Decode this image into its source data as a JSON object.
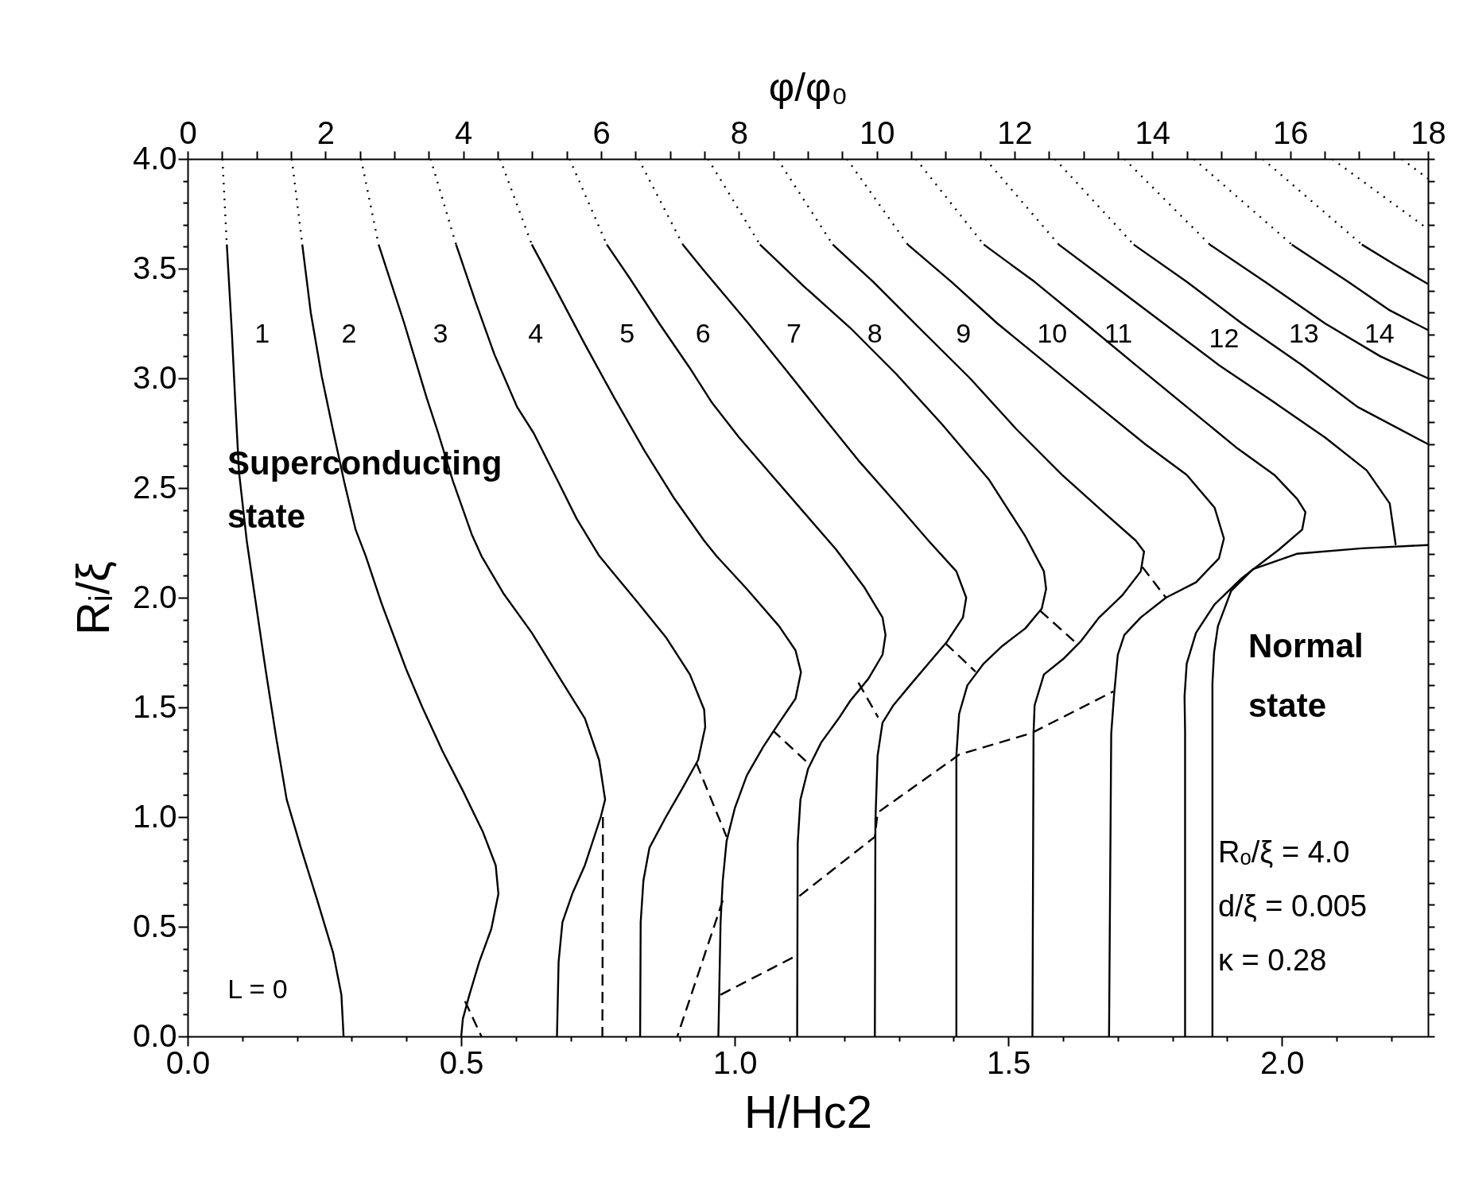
{
  "chart_data": {
    "type": "line",
    "xlabel": "H/Hc2",
    "ylabel": "Rᵢ/ξ",
    "x2label": "φ/φ₀",
    "xlim": [
      0,
      2.267
    ],
    "ylim": [
      0,
      4.0
    ],
    "x2lim": [
      0,
      18
    ],
    "xticks": [
      {
        "value": 0,
        "label": "0.0"
      },
      {
        "value": 0.1,
        "label": null
      },
      {
        "value": 0.2,
        "label": null
      },
      {
        "value": 0.3,
        "label": null
      },
      {
        "value": 0.4,
        "label": null
      },
      0.5,
      {
        "value": 0.6,
        "label": null
      },
      {
        "value": 0.7,
        "label": null
      },
      {
        "value": 0.8,
        "label": null
      },
      {
        "value": 0.9,
        "label": null
      },
      {
        "value": 1.0,
        "label": "1.0"
      },
      {
        "value": 1.1,
        "label": null
      },
      {
        "value": 1.2,
        "label": null
      },
      {
        "value": 1.3,
        "label": null
      },
      {
        "value": 1.4,
        "label": null
      },
      1.5,
      {
        "value": 1.6,
        "label": null
      },
      {
        "value": 1.7,
        "label": null
      },
      {
        "value": 1.8,
        "label": null
      },
      {
        "value": 1.9,
        "label": null
      },
      {
        "value": 2.0,
        "label": "2.0"
      },
      {
        "value": 2.1,
        "label": null
      },
      {
        "value": 2.2,
        "label": null
      }
    ],
    "yticks": [
      {
        "value": 0,
        "label": "0.0"
      },
      {
        "value": 0.1,
        "label": null
      },
      {
        "value": 0.2,
        "label": null
      },
      {
        "value": 0.3,
        "label": null
      },
      {
        "value": 0.4,
        "label": null
      },
      0.5,
      {
        "value": 0.6,
        "label": null
      },
      {
        "value": 0.7,
        "label": null
      },
      {
        "value": 0.8,
        "label": null
      },
      {
        "value": 0.9,
        "label": null
      },
      {
        "value": 1.0,
        "label": "1.0"
      },
      {
        "value": 1.1,
        "label": null
      },
      {
        "value": 1.2,
        "label": null
      },
      {
        "value": 1.3,
        "label": null
      },
      {
        "value": 1.4,
        "label": null
      },
      1.5,
      {
        "value": 1.6,
        "label": null
      },
      {
        "value": 1.7,
        "label": null
      },
      {
        "value": 1.8,
        "label": null
      },
      {
        "value": 1.9,
        "label": null
      },
      {
        "value": 2.0,
        "label": "2.0"
      },
      {
        "value": 2.1,
        "label": null
      },
      {
        "value": 2.2,
        "label": null
      },
      {
        "value": 2.3,
        "label": null
      },
      {
        "value": 2.4,
        "label": null
      },
      2.5,
      {
        "value": 2.6,
        "label": null
      },
      {
        "value": 2.7,
        "label": null
      },
      {
        "value": 2.8,
        "label": null
      },
      {
        "value": 2.9,
        "label": null
      },
      {
        "value": 3.0,
        "label": "3.0"
      },
      {
        "value": 3.1,
        "label": null
      },
      {
        "value": 3.2,
        "label": null
      },
      {
        "value": 3.3,
        "label": null
      },
      {
        "value": 3.4,
        "label": null
      },
      3.5,
      {
        "value": 3.6,
        "label": null
      },
      {
        "value": 3.7,
        "label": null
      },
      {
        "value": 3.8,
        "label": null
      },
      {
        "value": 3.9,
        "label": null
      },
      {
        "value": 4.0,
        "label": "4.0"
      }
    ],
    "x2ticks": [
      0,
      {
        "value": 0.5,
        "label": null
      },
      {
        "value": 1,
        "label": null
      },
      {
        "value": 1.5,
        "label": null
      },
      2,
      {
        "value": 2.5,
        "label": null
      },
      {
        "value": 3,
        "label": null
      },
      {
        "value": 3.5,
        "label": null
      },
      4,
      {
        "value": 4.5,
        "label": null
      },
      {
        "value": 5,
        "label": null
      },
      {
        "value": 5.5,
        "label": null
      },
      6,
      {
        "value": 6.5,
        "label": null
      },
      {
        "value": 7,
        "label": null
      },
      {
        "value": 7.5,
        "label": null
      },
      8,
      {
        "value": 8.5,
        "label": null
      },
      {
        "value": 9,
        "label": null
      },
      {
        "value": 9.5,
        "label": null
      },
      10,
      {
        "value": 10.5,
        "label": null
      },
      {
        "value": 11,
        "label": null
      },
      {
        "value": 11.5,
        "label": null
      },
      12,
      {
        "value": 12.5,
        "label": null
      },
      {
        "value": 13,
        "label": null
      },
      {
        "value": 13.5,
        "label": null
      },
      14,
      {
        "value": 14.5,
        "label": null
      },
      {
        "value": 15,
        "label": null
      },
      {
        "value": 15.5,
        "label": null
      },
      16,
      {
        "value": 16.5,
        "label": null
      },
      {
        "value": 17,
        "label": null
      },
      {
        "value": 17.5,
        "label": null
      },
      18
    ],
    "grid": false,
    "line_style": "solid",
    "series": [
      {
        "color": "#000000",
        "x": [
          0.0716,
          0.0806,
          0.0875,
          0.094,
          0.108,
          0.122,
          0.142,
          0.162,
          0.181,
          0.207,
          0.237,
          0.266,
          0.281,
          0.285
        ],
        "values": [
          3.61,
          3.22,
          2.87,
          2.57,
          2.26,
          2.02,
          1.68,
          1.36,
          1.08,
          0.86,
          0.62,
          0.38,
          0.19,
          0.0
        ]
      },
      {
        "color": "#000000",
        "x": [
          0.2095,
          0.225,
          0.245,
          0.266,
          0.286,
          0.307,
          0.3255,
          0.355,
          0.4,
          0.429,
          0.466,
          0.503,
          0.54,
          0.563,
          0.568,
          0.555,
          0.533,
          0.515,
          0.503,
          0.5
        ],
        "values": [
          3.61,
          3.3,
          3.01,
          2.76,
          2.53,
          2.31,
          2.19,
          1.97,
          1.67,
          1.5,
          1.3,
          1.12,
          0.93,
          0.78,
          0.65,
          0.49,
          0.34,
          0.19,
          0.08,
          0.0
        ]
      },
      {
        "color": "#000000",
        "x": [
          0.349,
          0.396,
          0.437,
          0.458,
          0.485,
          0.519,
          0.537,
          0.577,
          0.629,
          0.681,
          0.726,
          0.752,
          0.763,
          0.755,
          0.726,
          0.703,
          0.685,
          0.678,
          0.675
        ],
        "values": [
          3.61,
          3.25,
          2.91,
          2.75,
          2.53,
          2.29,
          2.19,
          2.02,
          1.84,
          1.63,
          1.45,
          1.26,
          1.08,
          1.0,
          0.78,
          0.65,
          0.52,
          0.34,
          0.0
        ]
      },
      {
        "color": "#000000",
        "x": [
          0.4906,
          0.526,
          0.5605,
          0.602,
          0.6325,
          0.677,
          0.711,
          0.7524,
          0.822,
          0.874,
          0.918,
          0.944,
          0.946,
          0.933,
          0.904,
          0.874,
          0.844,
          0.833,
          0.828,
          0.827
        ],
        "values": [
          3.61,
          3.35,
          3.11,
          2.87,
          2.75,
          2.53,
          2.36,
          2.19,
          1.98,
          1.82,
          1.65,
          1.49,
          1.41,
          1.26,
          1.13,
          1.0,
          0.86,
          0.71,
          0.52,
          0.0
        ]
      },
      {
        "color": "#000000",
        "x": [
          0.629,
          0.67,
          0.725,
          0.78,
          0.835,
          0.89,
          0.944,
          0.9665,
          1.022,
          1.081,
          1.111,
          1.121,
          1.111,
          1.081,
          1.052,
          1.022,
          1.0,
          0.985,
          0.978,
          0.974,
          0.97
        ],
        "values": [
          3.61,
          3.42,
          3.16,
          2.91,
          2.67,
          2.45,
          2.26,
          2.19,
          2.04,
          1.87,
          1.76,
          1.66,
          1.54,
          1.43,
          1.32,
          1.19,
          1.04,
          0.89,
          0.71,
          0.52,
          0.0
        ]
      },
      {
        "color": "#000000",
        "x": [
          0.766,
          0.807,
          0.862,
          0.917,
          0.958,
          1.008,
          1.067,
          1.126,
          1.185,
          1.236,
          1.27,
          1.2755,
          1.27,
          1.244,
          1.211,
          1.19,
          1.158,
          1.134,
          1.12,
          1.115,
          1.114
        ],
        "values": [
          3.61,
          3.46,
          3.25,
          3.05,
          2.89,
          2.73,
          2.56,
          2.39,
          2.22,
          2.05,
          1.91,
          1.83,
          1.74,
          1.63,
          1.53,
          1.45,
          1.34,
          1.22,
          1.08,
          0.88,
          0.0
        ]
      },
      {
        "color": "#000000",
        "x": [
          0.905,
          0.944,
          1.025,
          1.093,
          1.16,
          1.228,
          1.295,
          1.354,
          1.405,
          1.423,
          1.417,
          1.388,
          1.354,
          1.32,
          1.29,
          1.27,
          1.261,
          1.257,
          1.256
        ],
        "values": [
          3.61,
          3.49,
          3.25,
          3.04,
          2.83,
          2.62,
          2.43,
          2.26,
          2.12,
          2.0,
          1.91,
          1.8,
          1.7,
          1.6,
          1.51,
          1.43,
          1.28,
          0.98,
          0.0
        ]
      },
      {
        "color": "#000000",
        "x": [
          1.046,
          1.126,
          1.211,
          1.295,
          1.379,
          1.464,
          1.531,
          1.565,
          1.569,
          1.561,
          1.531,
          1.489,
          1.455,
          1.425,
          1.41,
          1.405,
          1.405
        ],
        "values": [
          3.61,
          3.42,
          3.23,
          3.02,
          2.79,
          2.54,
          2.28,
          2.12,
          2.04,
          1.95,
          1.86,
          1.78,
          1.7,
          1.6,
          1.47,
          1.28,
          0.0
        ]
      },
      {
        "color": "#000000",
        "x": [
          1.179,
          1.253,
          1.337,
          1.43,
          1.514,
          1.598,
          1.674,
          1.733,
          1.748,
          1.742,
          1.708,
          1.666,
          1.632,
          1.6,
          1.565,
          1.548,
          1.546,
          1.544
        ],
        "values": [
          3.61,
          3.44,
          3.23,
          3.0,
          2.77,
          2.56,
          2.39,
          2.26,
          2.21,
          2.12,
          2.01,
          1.91,
          1.8,
          1.72,
          1.65,
          1.51,
          1.38,
          0.0
        ]
      },
      {
        "color": "#000000",
        "x": [
          1.316,
          1.396,
          1.48,
          1.573,
          1.666,
          1.75,
          1.826,
          1.877,
          1.894,
          1.885,
          1.843,
          1.788,
          1.742,
          1.712,
          1.7,
          1.693,
          1.688,
          1.684
        ],
        "values": [
          3.61,
          3.44,
          3.25,
          3.06,
          2.87,
          2.7,
          2.56,
          2.41,
          2.27,
          2.18,
          2.07,
          2.0,
          1.91,
          1.83,
          1.74,
          1.55,
          1.38,
          0.0
        ]
      },
      {
        "color": "#000000",
        "x": [
          1.455,
          1.548,
          1.641,
          1.733,
          1.826,
          1.919,
          1.986,
          2.028,
          2.043,
          2.037,
          1.995,
          1.927,
          1.877,
          1.843,
          1.826,
          1.822,
          1.823,
          1.823
        ],
        "values": [
          3.61,
          3.44,
          3.25,
          3.06,
          2.87,
          2.68,
          2.56,
          2.45,
          2.39,
          2.31,
          2.22,
          2.09,
          1.97,
          1.84,
          1.7,
          1.55,
          1.39,
          0.0
        ]
      },
      {
        "color": "#000000",
        "x": [
          1.592,
          1.683,
          1.784,
          1.885,
          1.986,
          2.079,
          2.155,
          2.197,
          2.208
        ],
        "values": [
          3.61,
          3.44,
          3.25,
          3.06,
          2.89,
          2.73,
          2.58,
          2.43,
          2.24
        ]
      },
      {
        "color": "#000000",
        "x": [
          1.729,
          1.826,
          1.927,
          2.037,
          2.138,
          2.267
        ],
        "values": [
          3.61,
          3.44,
          3.25,
          3.06,
          2.87,
          2.7
        ]
      },
      {
        "color": "#000000",
        "x": [
          1.868,
          1.969,
          2.079,
          2.18,
          2.267
        ],
        "values": [
          3.61,
          3.44,
          3.25,
          3.1,
          3.0
        ]
      },
      {
        "color": "#000000",
        "x": [
          2.018,
          2.121,
          2.197,
          2.267
        ],
        "values": [
          3.61,
          3.44,
          3.31,
          3.22
        ]
      },
      {
        "color": "#000000",
        "x": [
          2.146,
          2.205,
          2.267
        ],
        "values": [
          3.61,
          3.52,
          3.43
        ]
      },
      {
        "color": "#000000",
        "x": [
          1.873,
          1.873,
          1.876,
          1.883,
          1.907,
          1.947,
          2.027,
          2.146,
          2.267
        ],
        "values": [
          0.0,
          1.61,
          1.75,
          1.87,
          2.03,
          2.13,
          2.2,
          2.225,
          2.24
        ]
      },
      {
        "color": "#000000",
        "line_style": "dotted",
        "x": [
          0.0636,
          0.0716
        ],
        "values": [
          4.0,
          3.61
        ]
      },
      {
        "color": "#000000",
        "line_style": "dotted",
        "x": [
          0.1904,
          0.2095
        ],
        "values": [
          4.0,
          3.61
        ]
      },
      {
        "color": "#000000",
        "line_style": "dotted",
        "x": [
          0.317,
          0.349
        ],
        "values": [
          4.0,
          3.61
        ]
      },
      {
        "color": "#000000",
        "line_style": "dotted",
        "x": [
          0.444,
          0.4906
        ],
        "values": [
          4.0,
          3.61
        ]
      },
      {
        "color": "#000000",
        "line_style": "dotted",
        "x": [
          0.571,
          0.629
        ],
        "values": [
          4.0,
          3.61
        ]
      },
      {
        "color": "#000000",
        "line_style": "dotted",
        "x": [
          0.698,
          0.766
        ],
        "values": [
          4.0,
          3.61
        ]
      },
      {
        "color": "#000000",
        "line_style": "dotted",
        "x": [
          0.824,
          0.905
        ],
        "values": [
          4.0,
          3.61
        ]
      },
      {
        "color": "#000000",
        "line_style": "dotted",
        "x": [
          0.951,
          1.046
        ],
        "values": [
          4.0,
          3.61
        ]
      },
      {
        "color": "#000000",
        "line_style": "dotted",
        "x": [
          1.078,
          1.179
        ],
        "values": [
          4.0,
          3.61
        ]
      },
      {
        "color": "#000000",
        "line_style": "dotted",
        "x": [
          1.205,
          1.316
        ],
        "values": [
          4.0,
          3.61
        ]
      },
      {
        "color": "#000000",
        "line_style": "dotted",
        "x": [
          1.331,
          1.455
        ],
        "values": [
          4.0,
          3.61
        ]
      },
      {
        "color": "#000000",
        "line_style": "dotted",
        "x": [
          1.458,
          1.592
        ],
        "values": [
          4.0,
          3.61
        ]
      },
      {
        "color": "#000000",
        "line_style": "dotted",
        "x": [
          1.585,
          1.729
        ],
        "values": [
          4.0,
          3.61
        ]
      },
      {
        "color": "#000000",
        "line_style": "dotted",
        "x": [
          1.712,
          1.868
        ],
        "values": [
          4.0,
          3.61
        ]
      },
      {
        "color": "#000000",
        "line_style": "dotted",
        "x": [
          1.839,
          2.018
        ],
        "values": [
          4.0,
          3.61
        ]
      },
      {
        "color": "#000000",
        "line_style": "dotted",
        "x": [
          1.965,
          2.146
        ],
        "values": [
          4.0,
          3.61
        ]
      },
      {
        "color": "#000000",
        "line_style": "dotted",
        "x": [
          2.092,
          2.267
        ],
        "values": [
          4.0,
          3.68
        ]
      },
      {
        "color": "#000000",
        "line_style": "dotted",
        "x": [
          2.219,
          2.267
        ],
        "values": [
          4.0,
          3.91
        ]
      },
      {
        "color": "#000000",
        "line_style": "dashed",
        "x": [
          0.507,
          0.537
        ],
        "values": [
          0.16,
          0.0
        ]
      },
      {
        "color": "#000000",
        "line_style": "dashed",
        "x": [
          0.759,
          0.758
        ],
        "values": [
          1.0,
          0.0
        ]
      },
      {
        "color": "#000000",
        "line_style": "dashed",
        "x": [
          0.93,
          0.985
        ],
        "values": [
          1.245,
          0.91
        ]
      },
      {
        "color": "#000000",
        "line_style": "dashed",
        "x": [
          0.978,
          0.895
        ],
        "values": [
          0.62,
          0.0
        ]
      },
      {
        "color": "#000000",
        "line_style": "dashed",
        "x": [
          1.13,
          1.07
        ],
        "values": [
          1.255,
          1.394
        ]
      },
      {
        "color": "#000000",
        "line_style": "dashed",
        "x": [
          0.974,
          1.114
        ],
        "values": [
          0.19,
          0.37
        ]
      },
      {
        "color": "#000000",
        "line_style": "dashed",
        "x": [
          1.226,
          1.262
        ],
        "values": [
          1.613,
          1.454
        ]
      },
      {
        "color": "#000000",
        "line_style": "dashed",
        "x": [
          1.385,
          1.44
        ],
        "values": [
          1.792,
          1.663
        ]
      },
      {
        "color": "#000000",
        "line_style": "dashed",
        "x": [
          1.558,
          1.62
        ],
        "values": [
          1.941,
          1.802
        ]
      },
      {
        "color": "#000000",
        "line_style": "dashed",
        "x": [
          1.745,
          1.788
        ],
        "values": [
          2.14,
          2.0
        ]
      },
      {
        "color": "#000000",
        "line_style": "dashed",
        "x": [
          1.118,
          1.256,
          1.261,
          1.405,
          1.41,
          1.545,
          1.548,
          1.692
        ],
        "values": [
          0.64,
          0.91,
          1.02,
          1.275,
          1.285,
          1.385,
          1.39,
          1.573
        ]
      }
    ],
    "annotations": [
      "1",
      "2",
      "3",
      "4",
      "5",
      "6",
      "7",
      "8",
      "9",
      "10",
      "11",
      "12",
      "13",
      "14",
      "L = 0",
      "Superconducting",
      "state",
      "Normal",
      "state",
      "Rₒ/ξ = 4.0",
      "d/ξ = 0.005",
      "κ = 0.28"
    ]
  }
}
